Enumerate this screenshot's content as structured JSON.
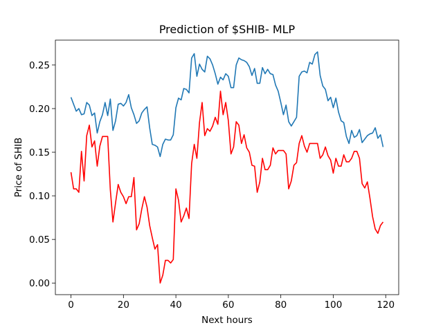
{
  "chart_data": {
    "type": "line",
    "title": "Prediction of $SHIB- MLP",
    "x_label": "Next hours",
    "y_label": "Price of SHIB",
    "x": [
      0,
      1,
      2,
      3,
      4,
      5,
      6,
      7,
      8,
      9,
      10,
      11,
      12,
      13,
      14,
      15,
      16,
      17,
      18,
      19,
      20,
      21,
      22,
      23,
      24,
      25,
      26,
      27,
      28,
      29,
      30,
      31,
      32,
      33,
      34,
      35,
      36,
      37,
      38,
      39,
      40,
      41,
      42,
      43,
      44,
      45,
      46,
      47,
      48,
      49,
      50,
      51,
      52,
      53,
      54,
      55,
      56,
      57,
      58,
      59,
      60,
      61,
      62,
      63,
      64,
      65,
      66,
      67,
      68,
      69,
      70,
      71,
      72,
      73,
      74,
      75,
      76,
      77,
      78,
      79,
      80,
      81,
      82,
      83,
      84,
      85,
      86,
      87,
      88,
      89,
      90,
      91,
      92,
      93,
      94,
      95,
      96,
      97,
      98,
      99,
      100,
      101,
      102,
      103,
      104,
      105,
      106,
      107,
      108,
      109,
      110,
      111,
      112,
      113,
      114,
      115,
      116,
      117,
      118,
      119
    ],
    "series": [
      {
        "color": "#1f77b4",
        "values": [
          0.213,
          0.205,
          0.197,
          0.2,
          0.193,
          0.194,
          0.207,
          0.204,
          0.192,
          0.195,
          0.172,
          0.185,
          0.193,
          0.207,
          0.192,
          0.211,
          0.175,
          0.186,
          0.205,
          0.206,
          0.203,
          0.207,
          0.216,
          0.201,
          0.193,
          0.183,
          0.186,
          0.195,
          0.199,
          0.202,
          0.178,
          0.159,
          0.158,
          0.156,
          0.145,
          0.159,
          0.165,
          0.164,
          0.164,
          0.17,
          0.201,
          0.212,
          0.21,
          0.223,
          0.222,
          0.218,
          0.258,
          0.263,
          0.237,
          0.251,
          0.245,
          0.242,
          0.26,
          0.257,
          0.25,
          0.24,
          0.228,
          0.236,
          0.233,
          0.24,
          0.237,
          0.224,
          0.224,
          0.25,
          0.258,
          0.256,
          0.255,
          0.253,
          0.248,
          0.238,
          0.246,
          0.229,
          0.229,
          0.247,
          0.24,
          0.245,
          0.24,
          0.239,
          0.227,
          0.22,
          0.207,
          0.193,
          0.204,
          0.185,
          0.18,
          0.185,
          0.19,
          0.237,
          0.242,
          0.243,
          0.241,
          0.253,
          0.251,
          0.262,
          0.265,
          0.238,
          0.226,
          0.222,
          0.209,
          0.213,
          0.201,
          0.212,
          0.196,
          0.186,
          0.184,
          0.168,
          0.16,
          0.175,
          0.167,
          0.169,
          0.176,
          0.161,
          0.165,
          0.169,
          0.171,
          0.172,
          0.178,
          0.166,
          0.17,
          0.156
        ]
      },
      {
        "color": "#ff0000",
        "values": [
          0.127,
          0.108,
          0.108,
          0.104,
          0.151,
          0.117,
          0.169,
          0.181,
          0.156,
          0.163,
          0.134,
          0.157,
          0.168,
          0.168,
          0.168,
          0.107,
          0.07,
          0.092,
          0.113,
          0.104,
          0.099,
          0.091,
          0.099,
          0.099,
          0.121,
          0.061,
          0.068,
          0.085,
          0.099,
          0.087,
          0.066,
          0.052,
          0.039,
          0.044,
          0.0,
          0.009,
          0.026,
          0.026,
          0.023,
          0.027,
          0.108,
          0.095,
          0.07,
          0.077,
          0.086,
          0.074,
          0.137,
          0.159,
          0.143,
          0.184,
          0.207,
          0.169,
          0.177,
          0.174,
          0.18,
          0.19,
          0.182,
          0.22,
          0.193,
          0.207,
          0.186,
          0.148,
          0.156,
          0.185,
          0.181,
          0.16,
          0.17,
          0.155,
          0.15,
          0.135,
          0.134,
          0.104,
          0.116,
          0.143,
          0.13,
          0.13,
          0.135,
          0.155,
          0.148,
          0.152,
          0.152,
          0.152,
          0.148,
          0.108,
          0.117,
          0.135,
          0.138,
          0.16,
          0.169,
          0.157,
          0.15,
          0.16,
          0.16,
          0.16,
          0.16,
          0.143,
          0.147,
          0.156,
          0.146,
          0.141,
          0.126,
          0.143,
          0.134,
          0.134,
          0.147,
          0.139,
          0.139,
          0.143,
          0.151,
          0.151,
          0.143,
          0.114,
          0.109,
          0.116,
          0.097,
          0.076,
          0.062,
          0.057,
          0.066,
          0.07
        ]
      }
    ],
    "xlim": [
      -5.95,
      124.95
    ],
    "xticks": [
      0,
      20,
      40,
      60,
      80,
      100,
      120
    ],
    "ylim": [
      -0.0133,
      0.2785
    ],
    "yticks": [
      {
        "value": 0,
        "label": "0.00"
      },
      0.05,
      {
        "value": 0.1,
        "label": "0.10"
      },
      0.15,
      {
        "value": 0.2,
        "label": "0.20"
      },
      0.25
    ]
  }
}
